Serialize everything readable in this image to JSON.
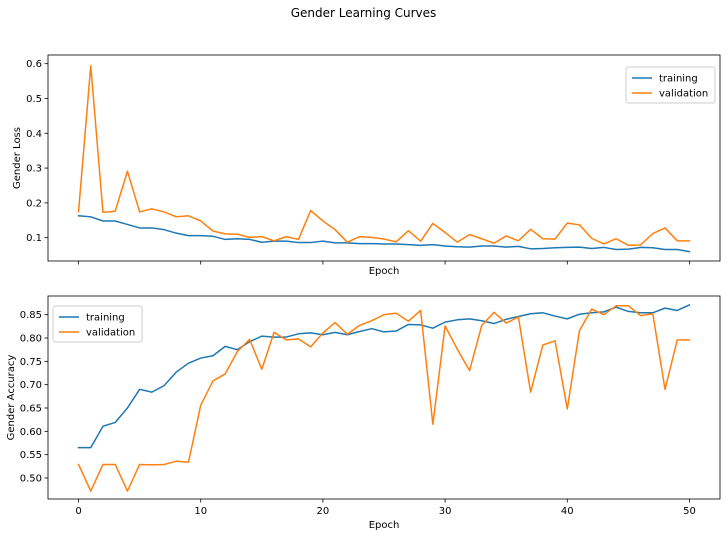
{
  "title": "Gender Learning Curves",
  "colors": {
    "training": "#1f77b4",
    "validation": "#ff7f0e"
  },
  "chart_data": [
    {
      "type": "line",
      "xlabel": "Epoch",
      "ylabel": "Gender Loss",
      "xlim": [
        -2.5,
        52.5
      ],
      "ylim": [
        0.033,
        0.625
      ],
      "yticks": [
        0.1,
        0.2,
        0.3,
        0.4,
        0.5,
        0.6
      ],
      "ytick_labels": [
        "0.1",
        "0.2",
        "0.3",
        "0.4",
        "0.5",
        "0.6"
      ],
      "xticks": [
        0,
        10,
        20,
        30,
        40,
        50
      ],
      "show_xtick_labels": false,
      "legend": "top-right",
      "x": [
        0,
        1,
        2,
        3,
        4,
        5,
        6,
        7,
        8,
        9,
        10,
        11,
        12,
        13,
        14,
        15,
        16,
        17,
        18,
        19,
        20,
        21,
        22,
        23,
        24,
        25,
        26,
        27,
        28,
        29,
        30,
        31,
        32,
        33,
        34,
        35,
        36,
        37,
        38,
        39,
        40,
        41,
        42,
        43,
        44,
        45,
        46,
        47,
        48,
        49,
        50
      ],
      "series": [
        {
          "name": "training",
          "values": [
            0.163,
            0.16,
            0.148,
            0.148,
            0.138,
            0.128,
            0.128,
            0.123,
            0.113,
            0.106,
            0.106,
            0.104,
            0.095,
            0.097,
            0.095,
            0.087,
            0.09,
            0.09,
            0.086,
            0.086,
            0.09,
            0.085,
            0.085,
            0.083,
            0.083,
            0.082,
            0.082,
            0.08,
            0.078,
            0.08,
            0.076,
            0.074,
            0.073,
            0.076,
            0.076,
            0.073,
            0.075,
            0.068,
            0.069,
            0.071,
            0.072,
            0.073,
            0.069,
            0.072,
            0.066,
            0.067,
            0.072,
            0.071,
            0.066,
            0.066,
            0.06
          ]
        },
        {
          "name": "validation",
          "values": [
            0.175,
            0.594,
            0.173,
            0.176,
            0.291,
            0.174,
            0.183,
            0.174,
            0.16,
            0.163,
            0.148,
            0.119,
            0.111,
            0.11,
            0.101,
            0.103,
            0.091,
            0.103,
            0.095,
            0.178,
            0.148,
            0.123,
            0.087,
            0.103,
            0.101,
            0.096,
            0.088,
            0.12,
            0.09,
            0.141,
            0.115,
            0.087,
            0.109,
            0.097,
            0.084,
            0.105,
            0.091,
            0.124,
            0.097,
            0.096,
            0.142,
            0.137,
            0.098,
            0.082,
            0.097,
            0.078,
            0.079,
            0.112,
            0.128,
            0.091,
            0.091
          ]
        }
      ]
    },
    {
      "type": "line",
      "xlabel": "Epoch",
      "ylabel": "Gender Accuracy",
      "xlim": [
        -2.5,
        52.5
      ],
      "ylim": [
        0.455,
        0.89
      ],
      "yticks": [
        0.5,
        0.55,
        0.6,
        0.65,
        0.7,
        0.75,
        0.8,
        0.85
      ],
      "ytick_labels": [
        "0.50",
        "0.55",
        "0.60",
        "0.65",
        "0.70",
        "0.75",
        "0.80",
        "0.85"
      ],
      "xticks": [
        0,
        10,
        20,
        30,
        40,
        50
      ],
      "xtick_labels": [
        "0",
        "10",
        "20",
        "30",
        "40",
        "50"
      ],
      "show_xtick_labels": true,
      "legend": "top-left",
      "x": [
        0,
        1,
        2,
        3,
        4,
        5,
        6,
        7,
        8,
        9,
        10,
        11,
        12,
        13,
        14,
        15,
        16,
        17,
        18,
        19,
        20,
        21,
        22,
        23,
        24,
        25,
        26,
        27,
        28,
        29,
        30,
        31,
        32,
        33,
        34,
        35,
        36,
        37,
        38,
        39,
        40,
        41,
        42,
        43,
        44,
        45,
        46,
        47,
        48,
        49,
        50
      ],
      "series": [
        {
          "name": "training",
          "values": [
            0.565,
            0.565,
            0.611,
            0.619,
            0.65,
            0.69,
            0.684,
            0.698,
            0.727,
            0.746,
            0.757,
            0.762,
            0.782,
            0.775,
            0.792,
            0.804,
            0.802,
            0.802,
            0.809,
            0.811,
            0.807,
            0.812,
            0.807,
            0.814,
            0.82,
            0.813,
            0.815,
            0.829,
            0.828,
            0.821,
            0.834,
            0.839,
            0.841,
            0.837,
            0.831,
            0.84,
            0.846,
            0.852,
            0.854,
            0.847,
            0.841,
            0.851,
            0.854,
            0.856,
            0.866,
            0.857,
            0.854,
            0.854,
            0.864,
            0.859,
            0.871
          ]
        },
        {
          "name": "validation",
          "values": [
            0.529,
            0.472,
            0.529,
            0.529,
            0.472,
            0.529,
            0.528,
            0.529,
            0.536,
            0.534,
            0.656,
            0.708,
            0.723,
            0.771,
            0.797,
            0.733,
            0.812,
            0.796,
            0.798,
            0.781,
            0.811,
            0.833,
            0.808,
            0.827,
            0.837,
            0.85,
            0.853,
            0.836,
            0.859,
            0.615,
            0.826,
            0.776,
            0.73,
            0.827,
            0.855,
            0.832,
            0.845,
            0.684,
            0.785,
            0.794,
            0.648,
            0.816,
            0.862,
            0.85,
            0.869,
            0.869,
            0.848,
            0.852,
            0.69,
            0.796,
            0.796
          ]
        }
      ]
    }
  ]
}
